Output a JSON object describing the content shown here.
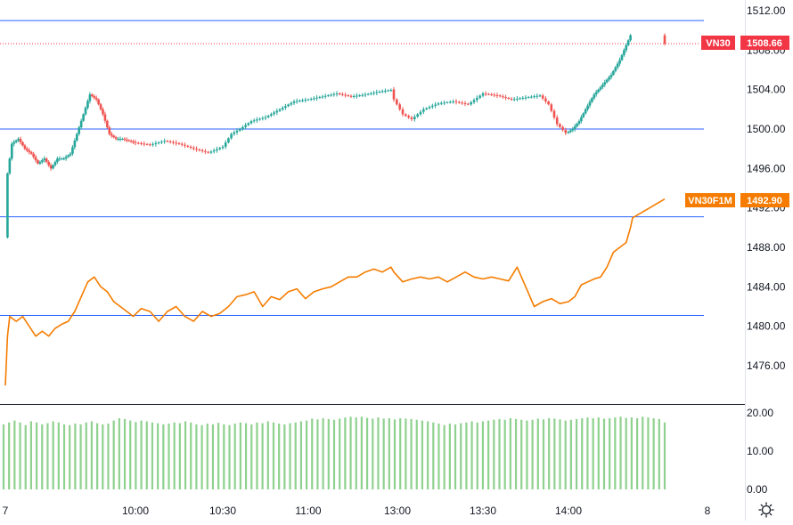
{
  "chart_data": [
    {
      "type": "candlestick",
      "title": "",
      "series": [
        {
          "name": "VN30",
          "last_value_label": "1508.66",
          "color_up": "#26a69a",
          "color_down": "#ef5350",
          "badge_color": "#f23645",
          "close_path": [
            [
              "09:00",
              1489.0
            ],
            [
              "09:01",
              1495.5
            ],
            [
              "09:03",
              1498.5
            ],
            [
              "09:06",
              1499.0
            ],
            [
              "09:09",
              1498.0
            ],
            [
              "09:12",
              1497.5
            ],
            [
              "09:15",
              1496.5
            ],
            [
              "09:18",
              1497.0
            ],
            [
              "09:21",
              1496.0
            ],
            [
              "09:24",
              1497.0
            ],
            [
              "09:27",
              1497.0
            ],
            [
              "09:30",
              1497.5
            ],
            [
              "09:33",
              1499.5
            ],
            [
              "09:36",
              1501.5
            ],
            [
              "09:39",
              1503.5
            ],
            [
              "09:42",
              1503.0
            ],
            [
              "09:45",
              1501.5
            ],
            [
              "09:48",
              1499.5
            ],
            [
              "09:51",
              1499.0
            ],
            [
              "09:54",
              1499.0
            ],
            [
              "10:00",
              1498.6
            ],
            [
              "10:05",
              1498.4
            ],
            [
              "10:10",
              1498.8
            ],
            [
              "10:15",
              1498.5
            ],
            [
              "10:20",
              1498.0
            ],
            [
              "10:25",
              1497.6
            ],
            [
              "10:30",
              1498.2
            ],
            [
              "10:33",
              1499.5
            ],
            [
              "10:36",
              1500.0
            ],
            [
              "10:40",
              1500.8
            ],
            [
              "10:45",
              1501.2
            ],
            [
              "10:50",
              1502.0
            ],
            [
              "10:55",
              1502.8
            ],
            [
              "11:00",
              1503.0
            ],
            [
              "11:05",
              1503.3
            ],
            [
              "11:10",
              1503.6
            ],
            [
              "11:15",
              1503.3
            ],
            [
              "11:20",
              1503.5
            ],
            [
              "11:25",
              1503.8
            ],
            [
              "11:30",
              1504.0
            ],
            [
              "13:00",
              1503.0
            ],
            [
              "13:03",
              1501.5
            ],
            [
              "13:06",
              1501.0
            ],
            [
              "13:10",
              1502.0
            ],
            [
              "13:15",
              1502.6
            ],
            [
              "13:20",
              1502.8
            ],
            [
              "13:25",
              1502.5
            ],
            [
              "13:30",
              1503.6
            ],
            [
              "13:35",
              1503.4
            ],
            [
              "13:40",
              1503.0
            ],
            [
              "13:45",
              1503.2
            ],
            [
              "13:50",
              1503.4
            ],
            [
              "13:53",
              1502.5
            ],
            [
              "13:56",
              1500.5
            ],
            [
              "13:59",
              1499.6
            ],
            [
              "14:02",
              1500.0
            ],
            [
              "14:05",
              1500.8
            ],
            [
              "14:08",
              1502.0
            ],
            [
              "14:12",
              1503.5
            ],
            [
              "14:16",
              1504.5
            ],
            [
              "14:20",
              1505.5
            ],
            [
              "14:24",
              1507.0
            ],
            [
              "14:27",
              1508.5
            ],
            [
              "14:29",
              1509.5
            ],
            [
              "14:30",
              1508.0
            ],
            [
              "14:45",
              1508.66
            ]
          ]
        },
        {
          "name": "VN30F1M",
          "type": "line",
          "last_value_label": "1492.90",
          "color": "#f57c00",
          "points": [
            [
              "09:00",
              1474.0
            ],
            [
              "09:01",
              1479.0
            ],
            [
              "09:02",
              1481.0
            ],
            [
              "09:05",
              1480.5
            ],
            [
              "09:08",
              1481.0
            ],
            [
              "09:11",
              1480.0
            ],
            [
              "09:14",
              1479.0
            ],
            [
              "09:17",
              1479.5
            ],
            [
              "09:20",
              1479.0
            ],
            [
              "09:23",
              1479.8
            ],
            [
              "09:26",
              1480.2
            ],
            [
              "09:29",
              1480.5
            ],
            [
              "09:32",
              1481.5
            ],
            [
              "09:35",
              1483.0
            ],
            [
              "09:38",
              1484.5
            ],
            [
              "09:41",
              1485.0
            ],
            [
              "09:44",
              1484.0
            ],
            [
              "09:47",
              1483.5
            ],
            [
              "09:50",
              1482.5
            ],
            [
              "09:53",
              1482.0
            ],
            [
              "09:56",
              1481.5
            ],
            [
              "09:59",
              1481.0
            ],
            [
              "10:02",
              1481.8
            ],
            [
              "10:05",
              1481.5
            ],
            [
              "10:08",
              1480.5
            ],
            [
              "10:11",
              1481.5
            ],
            [
              "10:14",
              1482.0
            ],
            [
              "10:17",
              1481.0
            ],
            [
              "10:20",
              1480.5
            ],
            [
              "10:23",
              1481.5
            ],
            [
              "10:26",
              1481.0
            ],
            [
              "10:29",
              1481.3
            ],
            [
              "10:32",
              1482.0
            ],
            [
              "10:35",
              1483.0
            ],
            [
              "10:38",
              1483.2
            ],
            [
              "10:41",
              1483.5
            ],
            [
              "10:44",
              1482.0
            ],
            [
              "10:47",
              1483.0
            ],
            [
              "10:50",
              1482.7
            ],
            [
              "10:53",
              1483.5
            ],
            [
              "10:56",
              1483.8
            ],
            [
              "10:59",
              1482.8
            ],
            [
              "11:02",
              1483.5
            ],
            [
              "11:05",
              1483.8
            ],
            [
              "11:08",
              1484.0
            ],
            [
              "11:11",
              1484.5
            ],
            [
              "11:14",
              1485.0
            ],
            [
              "11:17",
              1485.0
            ],
            [
              "11:20",
              1485.5
            ],
            [
              "11:23",
              1485.8
            ],
            [
              "11:26",
              1485.5
            ],
            [
              "11:29",
              1486.0
            ],
            [
              "13:00",
              1485.5
            ],
            [
              "13:03",
              1484.5
            ],
            [
              "13:06",
              1484.8
            ],
            [
              "13:09",
              1485.0
            ],
            [
              "13:12",
              1484.8
            ],
            [
              "13:15",
              1485.0
            ],
            [
              "13:18",
              1484.5
            ],
            [
              "13:21",
              1485.0
            ],
            [
              "13:24",
              1485.5
            ],
            [
              "13:27",
              1485.0
            ],
            [
              "13:30",
              1484.8
            ],
            [
              "13:33",
              1485.0
            ],
            [
              "13:36",
              1484.8
            ],
            [
              "13:39",
              1484.6
            ],
            [
              "13:42",
              1486.0
            ],
            [
              "13:45",
              1484.0
            ],
            [
              "13:48",
              1482.0
            ],
            [
              "13:51",
              1482.5
            ],
            [
              "13:54",
              1482.8
            ],
            [
              "13:57",
              1482.3
            ],
            [
              "14:00",
              1482.5
            ],
            [
              "14:03",
              1483.0
            ],
            [
              "14:06",
              1484.2
            ],
            [
              "14:09",
              1484.5
            ],
            [
              "14:12",
              1484.8
            ],
            [
              "14:15",
              1485.0
            ],
            [
              "14:18",
              1486.0
            ],
            [
              "14:21",
              1487.5
            ],
            [
              "14:24",
              1488.0
            ],
            [
              "14:27",
              1488.5
            ],
            [
              "14:29",
              1490.0
            ],
            [
              "14:30",
              1491.0
            ],
            [
              "14:45",
              1492.9
            ]
          ]
        }
      ],
      "y_axis": {
        "position": "right",
        "ticks": [
          "1512.00",
          "1508.00",
          "1504.00",
          "1500.00",
          "1496.00",
          "1492.00",
          "1488.00",
          "1484.00",
          "1480.00",
          "1476.00"
        ],
        "range": [
          1474.0,
          1513.0
        ]
      },
      "x_axis": {
        "tick_labels": [
          "7",
          "10:00",
          "10:30",
          "11:00",
          "13:00",
          "13:30",
          "14:00",
          "8"
        ]
      },
      "horizontal_lines": [
        {
          "value": 1511.0,
          "color": "#2962ff"
        },
        {
          "value": 1500.0,
          "color": "#2962ff"
        },
        {
          "value": 1491.1,
          "color": "#2962ff"
        },
        {
          "value": 1481.1,
          "color": "#2962ff"
        },
        {
          "value": 1508.66,
          "color": "#f23645",
          "style": "dotted"
        }
      ],
      "grid": false,
      "legend": "none"
    },
    {
      "type": "bar",
      "title": "",
      "ticks": [
        "20.00",
        "10.00",
        "0.00"
      ],
      "range": [
        0,
        20
      ],
      "color": "#8fd18f",
      "values": [
        17,
        17.5,
        18,
        17.5,
        16.8,
        17.8,
        17.5,
        17,
        17.3,
        17.8,
        17.5,
        17,
        16.8,
        17.2,
        17,
        17.5,
        17.8,
        17.3,
        17,
        17.2,
        18,
        18.6,
        18.4,
        18,
        17.6,
        18,
        17.8,
        17.5,
        17.3,
        17,
        17.2,
        17.5,
        17.3,
        17.8,
        17.5,
        17,
        16.8,
        17.2,
        17,
        17.4,
        17,
        16.8,
        17.2,
        17.5,
        17.3,
        17,
        17.5,
        17.3,
        17.8,
        17.5,
        17.2,
        17,
        17.3,
        17.5,
        17.8,
        18,
        18.5,
        18.3,
        18.6,
        18.4,
        18.2,
        18.5,
        18.8,
        19,
        18.8,
        19,
        18.7,
        18.5,
        18.8,
        18.5,
        18.6,
        18.3,
        18.6,
        18.5,
        18.4,
        18.2,
        18,
        17.8,
        17.5,
        17.2,
        16.8,
        17.2,
        17,
        17.3,
        17.5,
        17.8,
        17.5,
        17.8,
        18,
        18.2,
        18.4,
        18.2,
        18.6,
        18.4,
        18.2,
        18,
        18.2,
        18.5,
        18.3,
        18.6,
        18.5,
        18.3,
        18,
        18.2,
        18.4,
        18.6,
        18.8,
        18.6,
        18.8,
        18.5,
        18.6,
        18.8,
        19,
        18.7,
        18.8,
        18.6,
        19,
        18.8,
        18.6,
        18.4,
        17.5
      ]
    }
  ]
}
